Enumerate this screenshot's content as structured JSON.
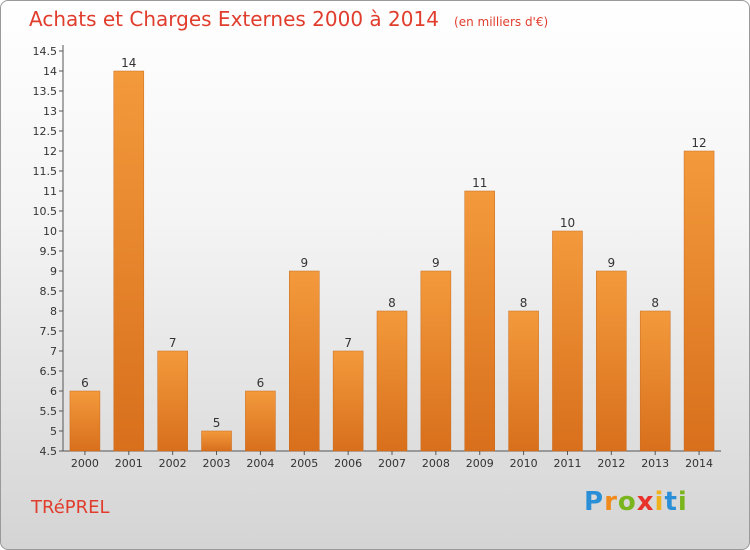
{
  "chart_data": {
    "type": "bar",
    "title": "Achats et Charges Externes 2000 à 2014",
    "subtitle": "(en milliers d'€)",
    "categories": [
      "2000",
      "2001",
      "2002",
      "2003",
      "2004",
      "2005",
      "2006",
      "2007",
      "2008",
      "2009",
      "2010",
      "2011",
      "2012",
      "2013",
      "2014"
    ],
    "values": [
      6,
      14,
      7,
      5,
      6,
      9,
      7,
      8,
      9,
      11,
      8,
      10,
      9,
      8,
      12
    ],
    "ylim": [
      4.5,
      14.5
    ],
    "yticks": [
      "4.5",
      "5",
      "5.5",
      "6",
      "6.5",
      "7",
      "7.5",
      "8",
      "8.5",
      "9",
      "9.5",
      "10",
      "10.5",
      "11",
      "11.5",
      "12",
      "12.5",
      "13",
      "13.5",
      "14",
      "14.5"
    ],
    "grid": false,
    "bar_color": "#f39a3c",
    "bar_color_dark": "#d86f1c",
    "text_color": "#e03d2d"
  },
  "commune": "TRéPREL",
  "logo": {
    "letters": [
      "P",
      "r",
      "o",
      "x",
      "i",
      "t",
      "i"
    ],
    "colors": [
      "#2a8fd6",
      "#f08a1c",
      "#7ab51d",
      "#e8322b",
      "#f0b21c",
      "#2a8fd6",
      "#7ab51d"
    ]
  }
}
